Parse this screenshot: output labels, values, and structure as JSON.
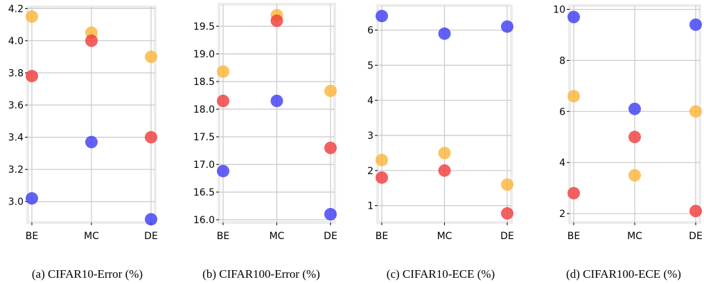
{
  "colors": {
    "blue": "#3b3bf5",
    "red": "#f03a3a",
    "orange": "#fbb436",
    "grid": "#c8c8c8",
    "frame": "#ececec"
  },
  "chart_data": [
    {
      "type": "scatter",
      "caption": "(a) CIFAR10-Error (%)",
      "categories": [
        "BE",
        "MC",
        "DE"
      ],
      "ylim": [
        2.87,
        4.21
      ],
      "yticks": [
        "3.0",
        "3.2",
        "3.4",
        "3.6",
        "3.8",
        "4.0",
        "4.2"
      ],
      "grid": true,
      "series": [
        {
          "color": "orange",
          "values": [
            4.15,
            4.05,
            3.9
          ]
        },
        {
          "color": "red",
          "values": [
            3.78,
            4.0,
            3.4
          ]
        },
        {
          "color": "blue",
          "values": [
            3.02,
            3.37,
            2.89
          ]
        }
      ]
    },
    {
      "type": "scatter",
      "caption": "(b) CIFAR100-Error (%)",
      "categories": [
        "BE",
        "MC",
        "DE"
      ],
      "ylim": [
        15.95,
        19.9
      ],
      "yticks": [
        "16.0",
        "16.5",
        "17.0",
        "17.5",
        "18.0",
        "18.5",
        "19.0",
        "19.5"
      ],
      "grid": true,
      "series": [
        {
          "color": "orange",
          "values": [
            18.68,
            19.7,
            18.33
          ]
        },
        {
          "color": "red",
          "values": [
            18.15,
            19.6,
            17.3
          ]
        },
        {
          "color": "blue",
          "values": [
            16.88,
            18.15,
            16.1
          ]
        }
      ]
    },
    {
      "type": "scatter",
      "caption": "(c) CIFAR10-ECE (%)",
      "categories": [
        "BE",
        "MC",
        "DE"
      ],
      "ylim": [
        0.52,
        6.7
      ],
      "yticks": [
        "1",
        "2",
        "3",
        "4",
        "5",
        "6"
      ],
      "grid": true,
      "series": [
        {
          "color": "orange",
          "values": [
            2.3,
            2.5,
            1.6
          ]
        },
        {
          "color": "red",
          "values": [
            1.8,
            2.0,
            0.78
          ]
        },
        {
          "color": "blue",
          "values": [
            6.4,
            5.9,
            6.1
          ]
        }
      ]
    },
    {
      "type": "scatter",
      "caption": "(d) CIFAR100-ECE (%)",
      "categories": [
        "BE",
        "MC",
        "DE"
      ],
      "ylim": [
        1.65,
        10.15
      ],
      "yticks": [
        "2",
        "4",
        "6",
        "8",
        "10"
      ],
      "grid": true,
      "series": [
        {
          "color": "orange",
          "values": [
            6.6,
            3.5,
            6.0
          ]
        },
        {
          "color": "red",
          "values": [
            2.8,
            5.0,
            2.1
          ]
        },
        {
          "color": "blue",
          "values": [
            9.7,
            6.1,
            9.4
          ]
        }
      ]
    }
  ]
}
